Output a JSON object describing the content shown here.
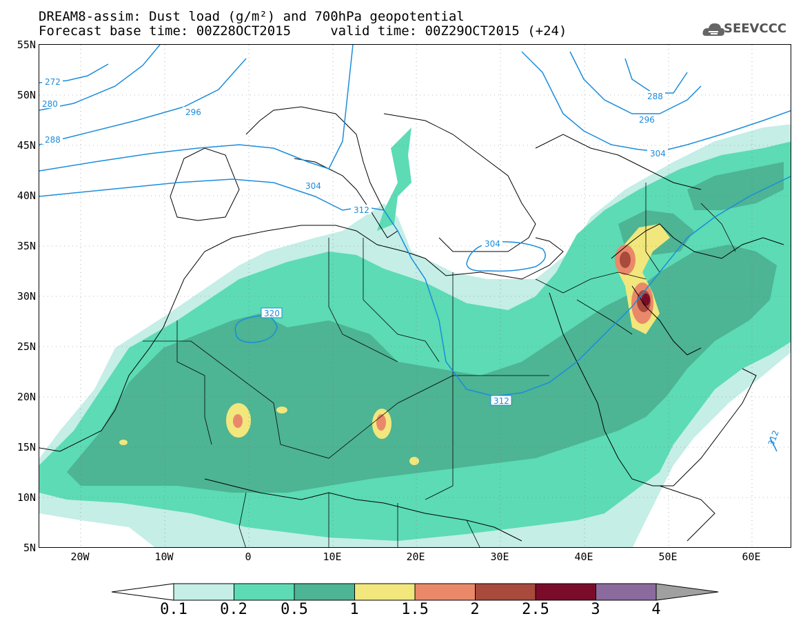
{
  "header": {
    "title_line1": "DREAM8-assim: Dust load (g/m²) and 700hPa geopotential",
    "title_line2": "Forecast base time: 00Z28OCT2015     valid time: 00Z29OCT2015 (+24)",
    "logo_text": "SEEVCCC",
    "logo_icon": "cloud-icon"
  },
  "axes": {
    "lat_labels": [
      "55N",
      "50N",
      "45N",
      "40N",
      "35N",
      "30N",
      "25N",
      "20N",
      "15N",
      "10N",
      "5N"
    ],
    "lon_labels": [
      "20W",
      "10W",
      "0",
      "10E",
      "20E",
      "30E",
      "40E",
      "50E",
      "60E"
    ]
  },
  "contours": {
    "geopotential_labels": [
      "272",
      "280",
      "288",
      "296",
      "304",
      "312",
      "320",
      "304",
      "312",
      "288",
      "296",
      "304",
      "312"
    ],
    "line_color": "#1a8cdc"
  },
  "colorbar": {
    "labels": [
      "0.1",
      "0.2",
      "0.5",
      "1",
      "1.5",
      "2",
      "2.5",
      "3",
      "4"
    ],
    "colors": [
      "#c4eee6",
      "#5cdbb4",
      "#4db494",
      "#f1e77c",
      "#e9896a",
      "#a84a3c",
      "#7a0c2a",
      "#8b6b9e"
    ]
  }
}
